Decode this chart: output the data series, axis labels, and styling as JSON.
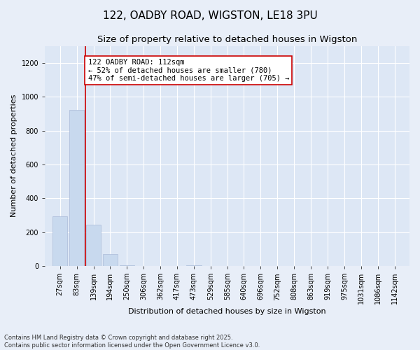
{
  "title1": "122, OADBY ROAD, WIGSTON, LE18 3PU",
  "title2": "Size of property relative to detached houses in Wigston",
  "xlabel": "Distribution of detached houses by size in Wigston",
  "ylabel": "Number of detached properties",
  "bar_color": "#c8d9ee",
  "bar_edge_color": "#aabbd8",
  "vline_color": "#cc0000",
  "vline_x": 112,
  "annotation_text": "122 OADBY ROAD: 112sqm\n← 52% of detached houses are smaller (780)\n47% of semi-detached houses are larger (705) →",
  "annotation_box_color": "white",
  "annotation_box_edge": "#cc0000",
  "background_color": "#e8eef8",
  "plot_background": "#dde7f5",
  "categories": [
    27,
    83,
    139,
    194,
    250,
    306,
    362,
    417,
    473,
    529,
    585,
    640,
    696,
    752,
    808,
    863,
    919,
    975,
    1031,
    1086,
    1142
  ],
  "values": [
    295,
    920,
    245,
    70,
    4,
    0,
    0,
    0,
    5,
    0,
    0,
    0,
    0,
    0,
    0,
    0,
    0,
    0,
    0,
    0,
    0
  ],
  "ylim": [
    0,
    1300
  ],
  "yticks": [
    0,
    200,
    400,
    600,
    800,
    1000,
    1200
  ],
  "footnote": "Contains HM Land Registry data © Crown copyright and database right 2025.\nContains public sector information licensed under the Open Government Licence v3.0.",
  "title_fontsize": 11,
  "subtitle_fontsize": 9.5,
  "label_fontsize": 8,
  "tick_fontsize": 7,
  "annotation_fontsize": 7.5
}
